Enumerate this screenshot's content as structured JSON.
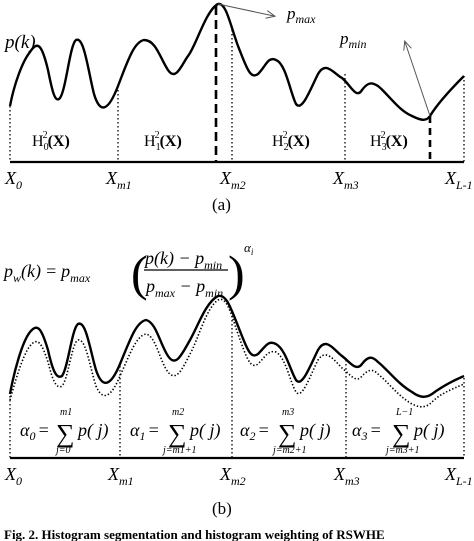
{
  "panel_a": {
    "y_label": "p(k)",
    "p_max_label": "p",
    "p_max_sub": "max",
    "p_min_label": "p",
    "p_min_sub": "min",
    "hist_labels": [
      {
        "base": "H",
        "sub": "0",
        "sup": "2",
        "arg": "(X)"
      },
      {
        "base": "H",
        "sub": "1",
        "sup": "2",
        "arg": "(X)"
      },
      {
        "base": "H",
        "sub": "2",
        "sup": "2",
        "arg": "(X)"
      },
      {
        "base": "H",
        "sub": "3",
        "sup": "2",
        "arg": "(X)"
      }
    ],
    "x_ticks": [
      {
        "base": "X",
        "sub": "0"
      },
      {
        "base": "X",
        "sub": "m1"
      },
      {
        "base": "X",
        "sub": "m2"
      },
      {
        "base": "X",
        "sub": "m3"
      },
      {
        "base": "X",
        "sub": "L-1"
      }
    ],
    "caption": "(a)"
  },
  "panel_b": {
    "formula": {
      "lhs": "p",
      "lhs_sub": "w",
      "arg": "(k)",
      "eq": "=",
      "pmax": "p",
      "pmax_sub": "max",
      "num": "p(k) − p",
      "num_sub": "min",
      "den_a": "p",
      "den_a_sub": "max",
      "den_mid": " − p",
      "den_b_sub": "min",
      "exp": "α",
      "exp_sub": "i"
    },
    "alphas": [
      {
        "alpha": "α",
        "sub": "0",
        "upper": "m1",
        "lower": "j=0",
        "term": "p( j)"
      },
      {
        "alpha": "α",
        "sub": "1",
        "upper": "m2",
        "lower": "j=m1+1",
        "term": "p( j)"
      },
      {
        "alpha": "α",
        "sub": "2",
        "upper": "m3",
        "lower": "j=m2+1",
        "term": "p( j)"
      },
      {
        "alpha": "α",
        "sub": "3",
        "upper": "L−1",
        "lower": "j=m3+1",
        "term": "p( j)"
      }
    ],
    "x_ticks": [
      {
        "base": "X",
        "sub": "0"
      },
      {
        "base": "X",
        "sub": "m1"
      },
      {
        "base": "X",
        "sub": "m2"
      },
      {
        "base": "X",
        "sub": "m3"
      },
      {
        "base": "X",
        "sub": "L-1"
      }
    ],
    "caption": "(b)"
  },
  "caption": "Fig. 2.  Histogram segmentation and histogram weighting of RSWHE"
}
